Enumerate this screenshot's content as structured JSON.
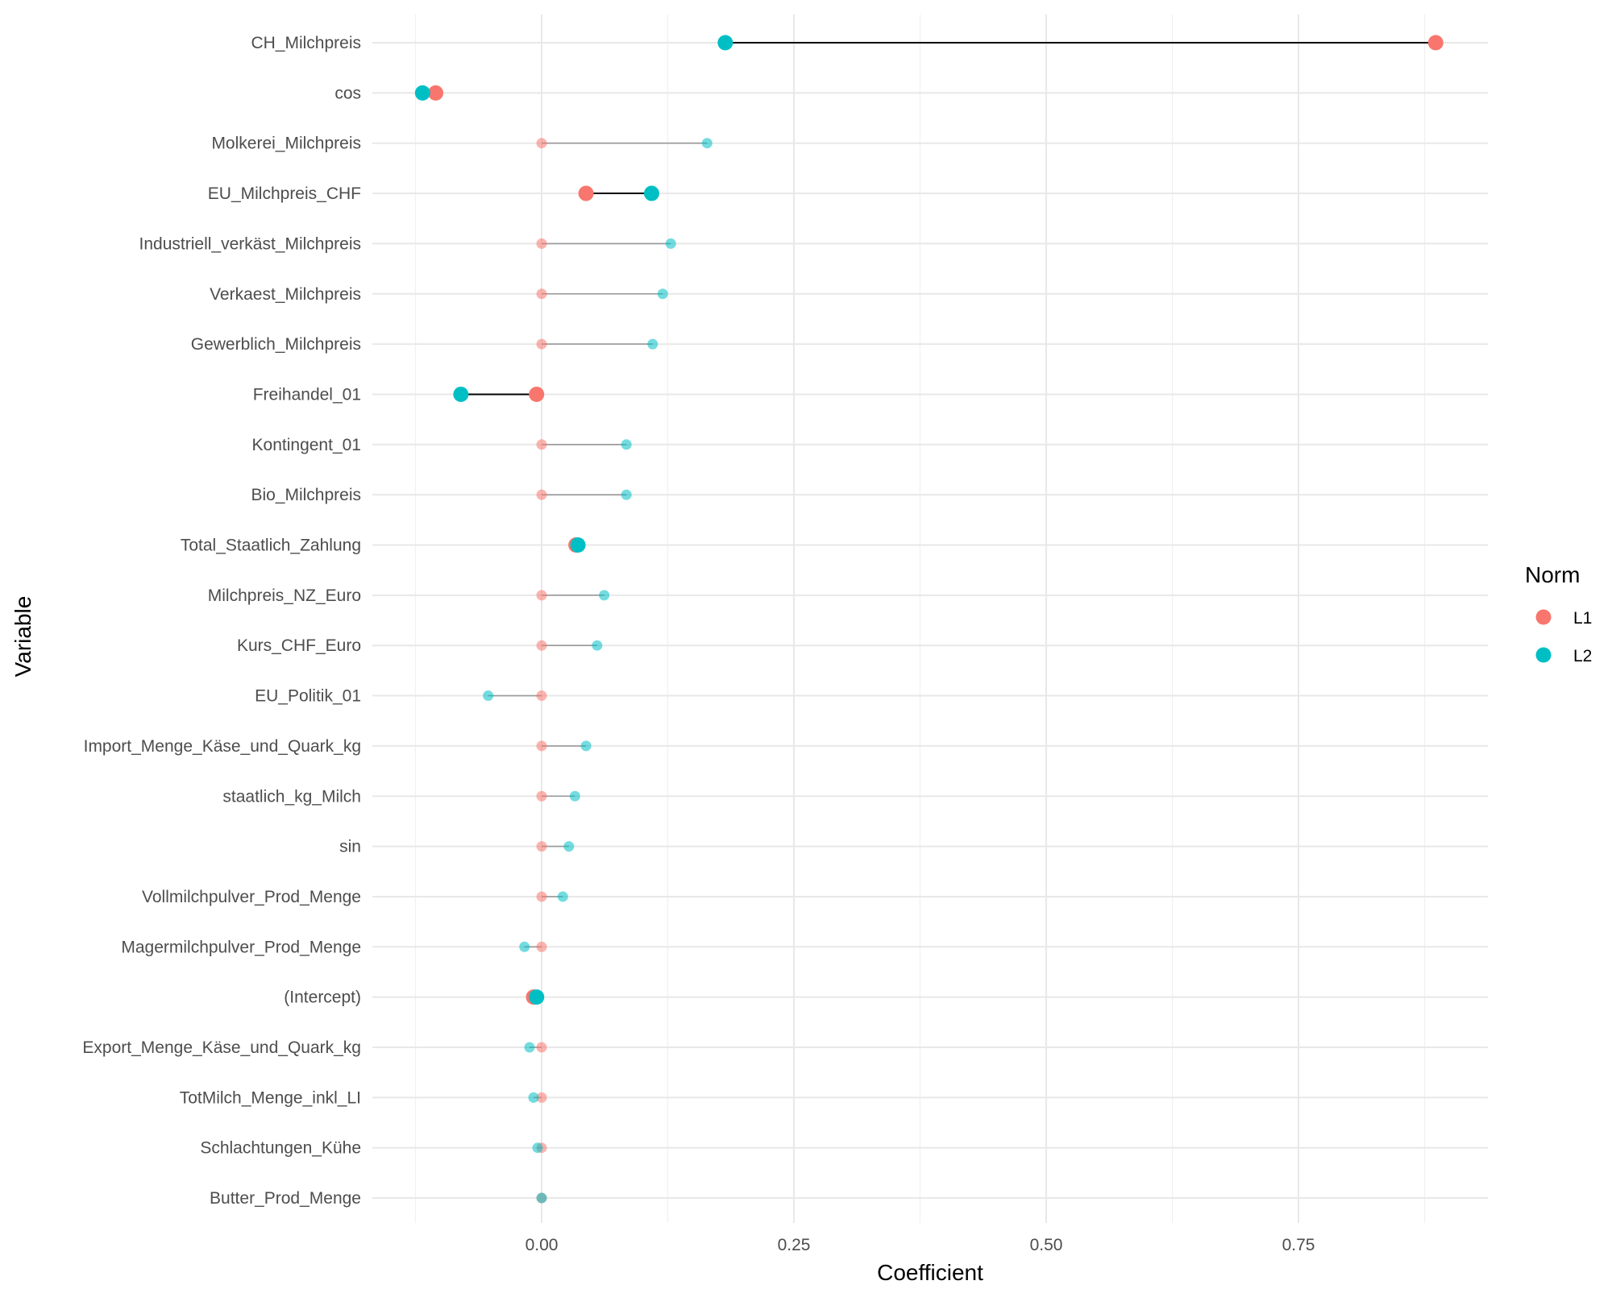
{
  "chart_data": {
    "type": "dumbbell",
    "xlabel": "Coefficient",
    "ylabel": "Variable",
    "xlim": [
      -0.175,
      0.935
    ],
    "x_ticks": [
      0.0,
      0.25,
      0.5,
      0.75
    ],
    "x_tick_labels": [
      "0.00",
      "0.25",
      "0.50",
      "0.75"
    ],
    "x_minor": [
      -0.125,
      0.125,
      0.375,
      0.625,
      0.875
    ],
    "grid": true,
    "legend": {
      "title": "Norm",
      "position": "right",
      "entries": [
        {
          "label": "L1",
          "color": "#F8766D"
        },
        {
          "label": "L2",
          "color": "#00BFC4"
        }
      ]
    },
    "rows": [
      {
        "variable": "CH_Milchpreis",
        "L1": 0.886,
        "L2": 0.182,
        "emphasis": true
      },
      {
        "variable": "cos",
        "L1": -0.105,
        "L2": -0.118,
        "emphasis": true
      },
      {
        "variable": "Molkerei_Milchpreis",
        "L1": 0.0,
        "L2": 0.164,
        "emphasis": false
      },
      {
        "variable": "EU_Milchpreis_CHF",
        "L1": 0.044,
        "L2": 0.109,
        "emphasis": true
      },
      {
        "variable": "Industriell_verkäst_Milchpreis",
        "L1": 0.0,
        "L2": 0.128,
        "emphasis": false
      },
      {
        "variable": "Verkaest_Milchpreis",
        "L1": 0.0,
        "L2": 0.12,
        "emphasis": false
      },
      {
        "variable": "Gewerblich_Milchpreis",
        "L1": 0.0,
        "L2": 0.11,
        "emphasis": false
      },
      {
        "variable": "Freihandel_01",
        "L1": -0.005,
        "L2": -0.08,
        "emphasis": true
      },
      {
        "variable": "Kontingent_01",
        "L1": 0.0,
        "L2": 0.084,
        "emphasis": false
      },
      {
        "variable": "Bio_Milchpreis",
        "L1": 0.0,
        "L2": 0.084,
        "emphasis": false
      },
      {
        "variable": "Total_Staatlich_Zahlung",
        "L1": 0.034,
        "L2": 0.036,
        "emphasis": true
      },
      {
        "variable": "Milchpreis_NZ_Euro",
        "L1": 0.0,
        "L2": 0.062,
        "emphasis": false
      },
      {
        "variable": "Kurs_CHF_Euro",
        "L1": 0.0,
        "L2": 0.055,
        "emphasis": false
      },
      {
        "variable": "EU_Politik_01",
        "L1": 0.0,
        "L2": -0.053,
        "emphasis": false
      },
      {
        "variable": "Import_Menge_Käse_und_Quark_kg",
        "L1": 0.0,
        "L2": 0.044,
        "emphasis": false
      },
      {
        "variable": "staatlich_kg_Milch",
        "L1": 0.0,
        "L2": 0.033,
        "emphasis": false
      },
      {
        "variable": "sin",
        "L1": 0.0,
        "L2": 0.027,
        "emphasis": false
      },
      {
        "variable": "Vollmilchpulver_Prod_Menge",
        "L1": 0.0,
        "L2": 0.021,
        "emphasis": false
      },
      {
        "variable": "Magermilchpulver_Prod_Menge",
        "L1": 0.0,
        "L2": -0.017,
        "emphasis": false
      },
      {
        "variable": "(Intercept)",
        "L1": -0.008,
        "L2": -0.005,
        "emphasis": true
      },
      {
        "variable": "Export_Menge_Käse_und_Quark_kg",
        "L1": 0.0,
        "L2": -0.012,
        "emphasis": false
      },
      {
        "variable": "TotMilch_Menge_inkl_LI",
        "L1": 0.0,
        "L2": -0.008,
        "emphasis": false
      },
      {
        "variable": "Schlachtungen_Kühe",
        "L1": 0.0,
        "L2": -0.004,
        "emphasis": false
      },
      {
        "variable": "Butter_Prod_Menge",
        "L1": 0.0,
        "L2": 0.0,
        "emphasis": false
      }
    ]
  }
}
